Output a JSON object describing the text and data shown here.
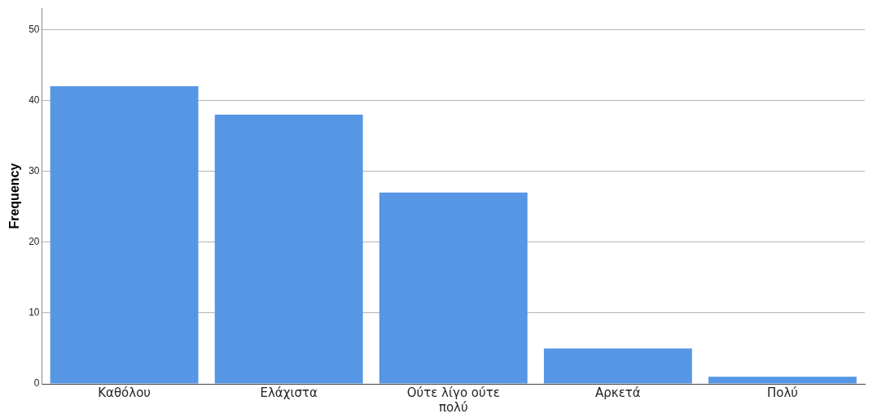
{
  "chart_data": {
    "type": "bar",
    "ylabel": "Frequency",
    "categories": [
      "Καθόλου",
      "Ελάχιστα",
      "Ούτε λίγο ούτε πολύ",
      "Αρκετά",
      "Πολύ"
    ],
    "values": [
      42,
      38,
      27,
      5,
      1
    ],
    "color": "#5596e5",
    "ylim": [
      0,
      53
    ],
    "yticks": [
      0,
      10,
      20,
      30,
      40,
      50
    ],
    "grid": "y",
    "legend": false
  }
}
